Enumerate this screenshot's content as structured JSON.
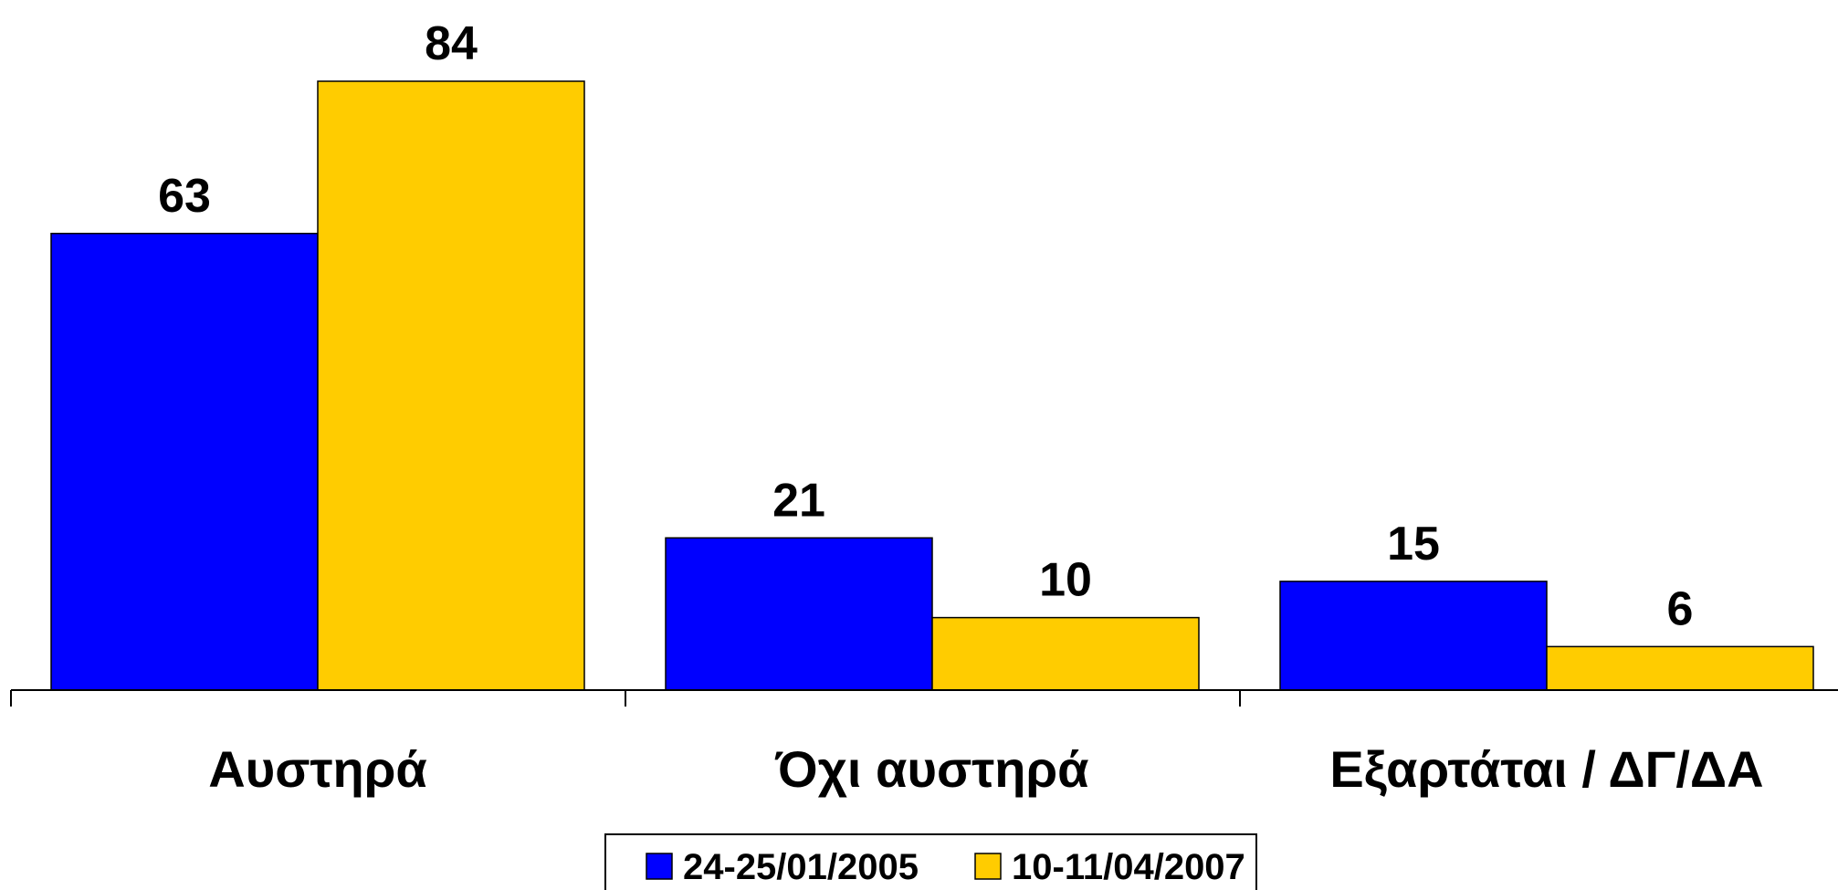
{
  "chart_data": {
    "type": "bar",
    "categories": [
      "Αυστηρά",
      "Όχι αυστηρά",
      "Εξαρτάται / ΔΓ/ΔΑ"
    ],
    "series": [
      {
        "name": "24-25/01/2005",
        "values": [
          63,
          21,
          15
        ],
        "color": "#0000FF"
      },
      {
        "name": "10-11/04/2007",
        "values": [
          84,
          10,
          6
        ],
        "color": "#FFCC00"
      }
    ],
    "ylim": [
      0,
      84
    ],
    "grid": false,
    "legend_position": "bottom-center",
    "data_labels": true
  }
}
